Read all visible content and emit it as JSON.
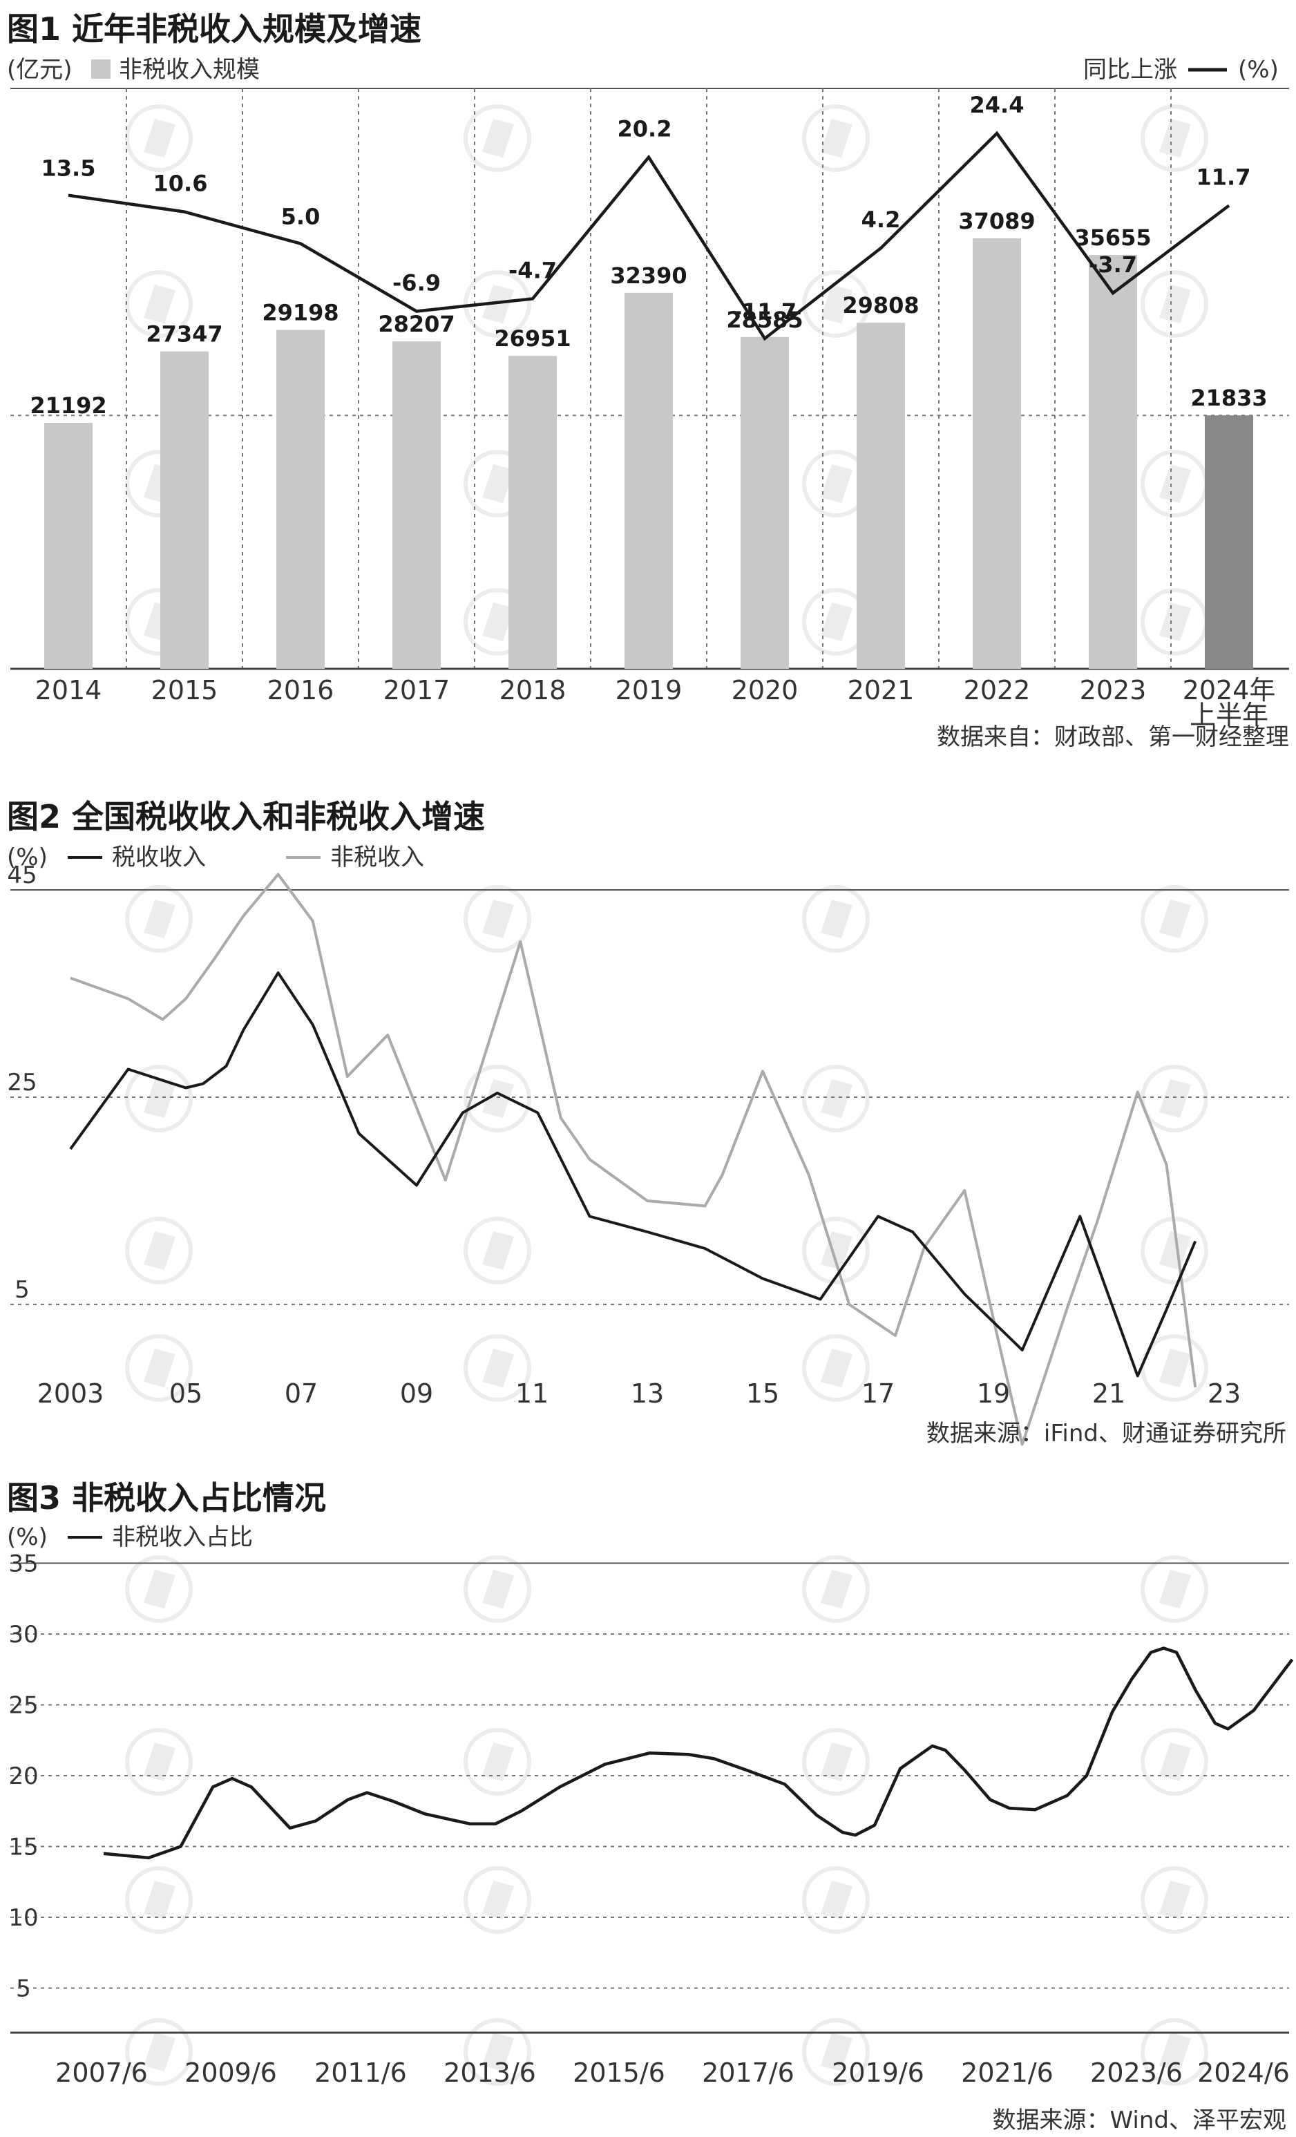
{
  "watermark_icon": "diamond-logo-icon",
  "chart_data": [
    {
      "type": "bar",
      "title": "图1 近年非税收入规模及增速",
      "left_unit": "(亿元)",
      "legend_bar": "非税收入规模",
      "legend_line": "同比上涨",
      "right_unit": "(%)",
      "categories": [
        "2014",
        "2015",
        "2016",
        "2017",
        "2018",
        "2019",
        "2020",
        "2021",
        "2022",
        "2023",
        "2024年"
      ],
      "last_category_line2": "上半年",
      "bar_values": [
        21192,
        27347,
        29198,
        28207,
        26951,
        32390,
        28585,
        29808,
        37089,
        35655,
        21833
      ],
      "bar_labels": [
        "21192",
        "27347",
        "29198",
        "28207",
        "26951",
        "32390",
        "28585",
        "29808",
        "37089",
        "35655",
        "21833"
      ],
      "growth_values": [
        13.5,
        10.6,
        5.0,
        -6.9,
        -4.7,
        20.2,
        -11.7,
        4.2,
        24.4,
        -3.7,
        11.7
      ],
      "growth_labels": [
        "13.5",
        "10.6",
        "5.0",
        "-6.9",
        "-4.7",
        "20.2",
        "-11.7",
        "4.2",
        "24.4",
        "-3.7",
        "11.7"
      ],
      "bar_color": "#c8c8c8",
      "highlight_bar_color": "#888888",
      "line_color": "#1a1a1a",
      "source": "数据来自：财政部、第一财经整理"
    },
    {
      "type": "line",
      "title": "图2 全国税收收入和非税收入增速",
      "unit": "(%)",
      "x": [
        2003,
        2004,
        2005,
        2006,
        2007,
        2008,
        2009,
        2010,
        2011,
        2012,
        2013,
        2014,
        2015,
        2016,
        2017,
        2018,
        2019,
        2020,
        2021,
        2022,
        2023
      ],
      "xtick_labels": [
        "2003",
        "05",
        "07",
        "09",
        "11",
        "13",
        "15",
        "17",
        "19",
        "21",
        "23"
      ],
      "ytick_labels": [
        "45",
        "25",
        "5"
      ],
      "ylim": [
        -15,
        45
      ],
      "series": [
        {
          "name": "税收收入",
          "color": "#1a1a1a",
          "points": [
            [
              2003.0,
              20.0
            ],
            [
              2004.0,
              27.7
            ],
            [
              2005.0,
              25.9
            ],
            [
              2005.3,
              26.3
            ],
            [
              2005.7,
              28.0
            ],
            [
              2006.0,
              31.5
            ],
            [
              2006.6,
              37.0
            ],
            [
              2007.2,
              32.0
            ],
            [
              2008.0,
              21.5
            ],
            [
              2009.0,
              16.5
            ],
            [
              2009.8,
              23.5
            ],
            [
              2010.4,
              25.4
            ],
            [
              2011.1,
              23.5
            ],
            [
              2012.0,
              13.5
            ],
            [
              2013.0,
              12.0
            ],
            [
              2014.0,
              10.4
            ],
            [
              2015.0,
              7.5
            ],
            [
              2016.0,
              5.5
            ],
            [
              2017.0,
              13.5
            ],
            [
              2017.6,
              12.0
            ],
            [
              2018.5,
              6.0
            ],
            [
              2019.5,
              0.6
            ],
            [
              2020.5,
              13.5
            ],
            [
              2021.5,
              -1.9
            ],
            [
              2022.0,
              4.5
            ],
            [
              2022.5,
              11.1
            ]
          ]
        },
        {
          "name": "非税收入",
          "color": "#aaaaaa",
          "points": [
            [
              2003.0,
              36.5
            ],
            [
              2004.0,
              34.5
            ],
            [
              2004.6,
              32.5
            ],
            [
              2005.0,
              34.5
            ],
            [
              2005.5,
              38.4
            ],
            [
              2006.0,
              42.5
            ],
            [
              2006.6,
              46.5
            ],
            [
              2007.2,
              42.0
            ],
            [
              2007.8,
              27.0
            ],
            [
              2008.5,
              31.0
            ],
            [
              2009.5,
              17.0
            ],
            [
              2010.8,
              40.0
            ],
            [
              2011.5,
              23.0
            ],
            [
              2012.0,
              19.0
            ],
            [
              2013.0,
              15.0
            ],
            [
              2014.0,
              14.5
            ],
            [
              2014.3,
              17.5
            ],
            [
              2015.0,
              27.5
            ],
            [
              2015.8,
              17.5
            ],
            [
              2016.5,
              5.0
            ],
            [
              2017.3,
              2.0
            ],
            [
              2017.8,
              10.5
            ],
            [
              2018.5,
              16.0
            ],
            [
              2019.0,
              3.6
            ],
            [
              2019.5,
              -8.5
            ],
            [
              2020.3,
              5.0
            ],
            [
              2020.8,
              13.0
            ],
            [
              2021.5,
              25.5
            ],
            [
              2022.0,
              18.5
            ],
            [
              2022.5,
              -3.0
            ]
          ]
        }
      ],
      "source": "数据来源：iFind、财通证券研究所"
    },
    {
      "type": "line",
      "title": "图3 非税收入占比情况",
      "unit": "(%)",
      "xtick_labels": [
        "2007/6",
        "2009/6",
        "2011/6",
        "2013/6",
        "2015/6",
        "2017/6",
        "2019/6",
        "2021/6",
        "2023/6",
        "2024/6"
      ],
      "ytick_labels": [
        "35",
        "30",
        "25",
        "20",
        "15",
        "10",
        "5"
      ],
      "ylim": [
        0,
        35
      ],
      "series": [
        {
          "name": "非税收入占比",
          "color": "#1a1a1a",
          "points": [
            [
              2007.5,
              14.5
            ],
            [
              2008.2,
              14.2
            ],
            [
              2008.7,
              15.0
            ],
            [
              2009.2,
              19.2
            ],
            [
              2009.5,
              19.8
            ],
            [
              2009.8,
              19.2
            ],
            [
              2010.4,
              16.3
            ],
            [
              2010.8,
              16.8
            ],
            [
              2011.3,
              18.3
            ],
            [
              2011.6,
              18.8
            ],
            [
              2012.0,
              18.2
            ],
            [
              2012.5,
              17.3
            ],
            [
              2013.2,
              16.6
            ],
            [
              2013.6,
              16.6
            ],
            [
              2014.0,
              17.5
            ],
            [
              2014.6,
              19.2
            ],
            [
              2015.3,
              20.8
            ],
            [
              2016.0,
              21.6
            ],
            [
              2016.6,
              21.5
            ],
            [
              2017.0,
              21.2
            ],
            [
              2017.5,
              20.4
            ],
            [
              2018.1,
              19.4
            ],
            [
              2018.6,
              17.2
            ],
            [
              2019.0,
              16.0
            ],
            [
              2019.2,
              15.8
            ],
            [
              2019.5,
              16.5
            ],
            [
              2019.9,
              20.5
            ],
            [
              2020.4,
              22.1
            ],
            [
              2020.6,
              21.8
            ],
            [
              2020.9,
              20.4
            ],
            [
              2021.3,
              18.3
            ],
            [
              2021.6,
              17.7
            ],
            [
              2022.0,
              17.6
            ],
            [
              2022.5,
              18.6
            ],
            [
              2022.8,
              20.0
            ],
            [
              2023.2,
              24.5
            ],
            [
              2023.5,
              26.8
            ],
            [
              2023.8,
              28.7
            ],
            [
              2024.0,
              29.0
            ],
            [
              2024.2,
              28.7
            ],
            [
              2024.5,
              26.0
            ],
            [
              2024.8,
              23.7
            ],
            [
              2025.0,
              23.3
            ],
            [
              2025.4,
              24.6
            ],
            [
              2026.0,
              28.2
            ]
          ]
        }
      ],
      "source": "数据来源：Wind、泽平宏观"
    }
  ]
}
